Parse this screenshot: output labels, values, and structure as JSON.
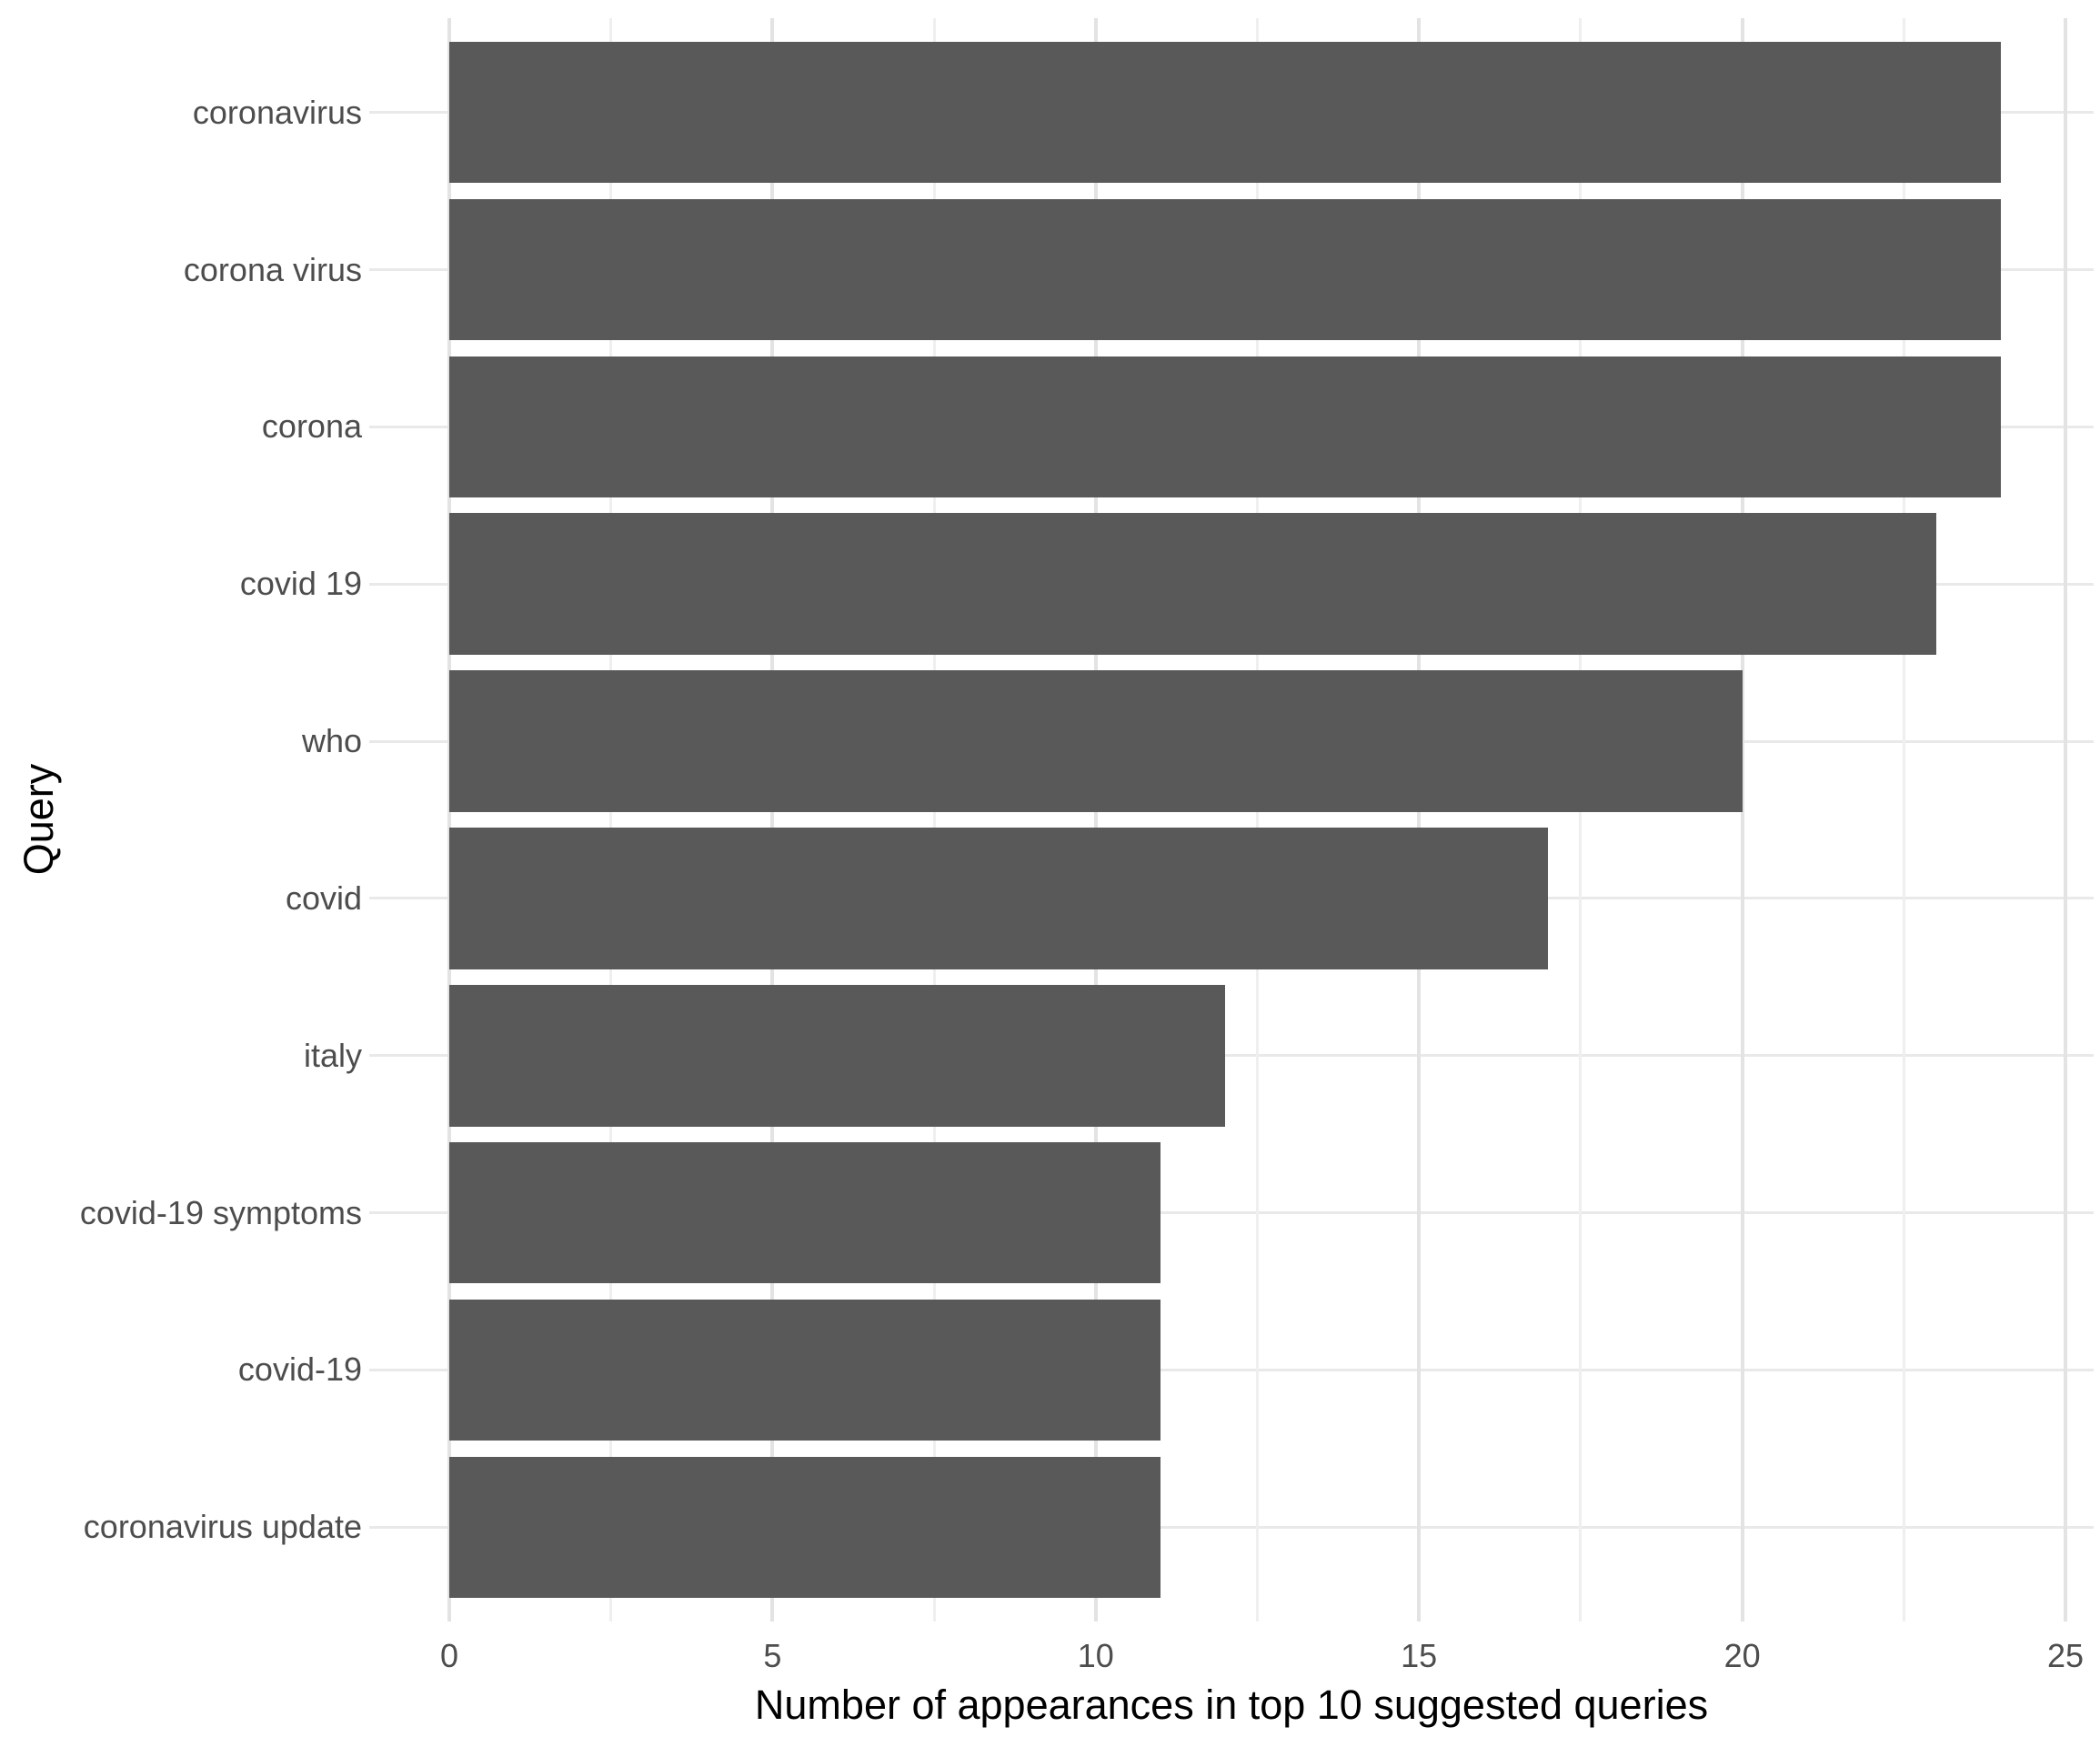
{
  "chart_data": {
    "type": "bar",
    "orientation": "horizontal",
    "categories": [
      "coronavirus",
      "corona virus",
      "corona",
      "covid 19",
      "who",
      "covid",
      "italy",
      "covid-19 symptoms",
      "covid-19",
      "coronavirus update"
    ],
    "values": [
      24,
      24,
      24,
      23,
      20,
      17,
      12,
      11,
      11,
      11
    ],
    "xlabel": "Number of appearances in top 10 suggested queries",
    "ylabel": "Query",
    "xlim": [
      0,
      25
    ],
    "x_major_ticks": [
      0,
      5,
      10,
      15,
      20,
      25
    ],
    "x_tick_labels": [
      "0",
      "5",
      "10",
      "15",
      "20",
      "25"
    ],
    "x_minor_ticks": [
      2.5,
      7.5,
      12.5,
      17.5,
      22.5
    ],
    "grid": "major and minor vertical, major horizontal per category row",
    "legend": "none",
    "bar_width_fraction": 0.9,
    "colors": {
      "bar": "#595959",
      "axis_text": "#4d4d4d",
      "axis_title": "#000000",
      "grid_major": "#e3e3e3",
      "grid_minor": "#efefef",
      "background": "#ffffff"
    }
  }
}
